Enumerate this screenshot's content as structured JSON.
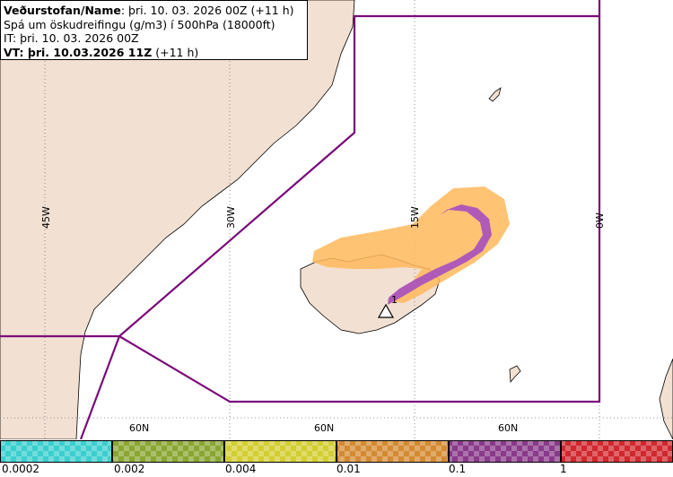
{
  "header": {
    "org_label": "Veðurstofan/Name",
    "run_text": ": þri. 10. 03. 2026 00Z (+11 h)",
    "product": "Spá um öskudreifingu (g/m3) í 500hPa (18000ft)",
    "issue_time": "IT: þri. 10. 03. 2026 00Z",
    "valid_label": "VT: þri. 10.03.2026 11Z",
    "valid_suffix": " (+11 h)"
  },
  "map": {
    "meridian_labels": [
      "45W",
      "30W",
      "15W",
      "0W"
    ],
    "parallel_labels": [
      "60N",
      "60N",
      "60N"
    ],
    "volcano_marker": "1",
    "colors": {
      "land": "#f2e0d2",
      "sea": "#ffffff",
      "coast": "#000000",
      "fir_boundary": "#7a0a7a",
      "grid": "#777777",
      "ash_low": "#9fe6e6",
      "ash_mid_low": "#e8e890",
      "ash_mid": "#ffb85c",
      "ash_high": "#b05ab8"
    }
  },
  "legend": {
    "colors": [
      "#3ccfcf",
      "#8aa632",
      "#d3ce32",
      "#d48a32",
      "#8a3a8a",
      "#d0282e"
    ],
    "labels": [
      "0.0002",
      "0.002",
      "0.004",
      "0.01",
      "0.1",
      "1"
    ]
  }
}
